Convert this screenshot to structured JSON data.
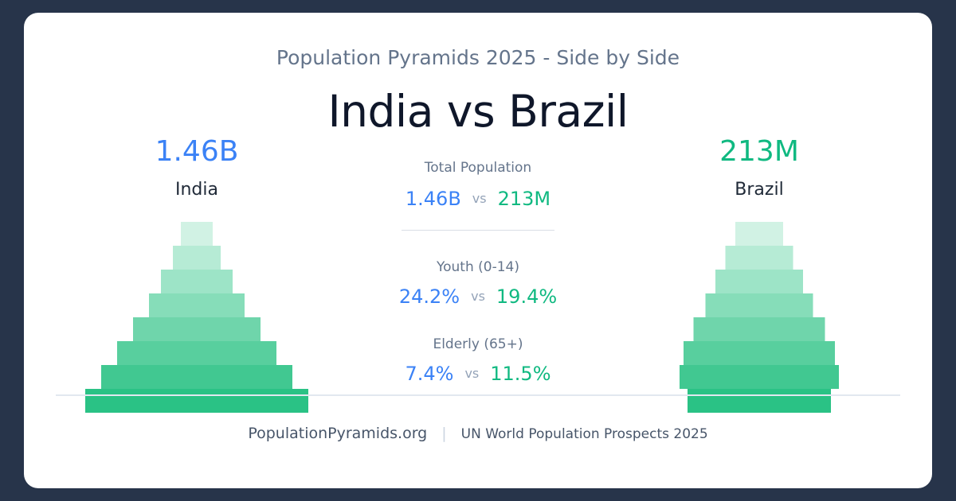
{
  "header": {
    "subtitle": "Population Pyramids 2025 - Side by Side",
    "title": "India vs Brazil"
  },
  "left": {
    "country": "India",
    "total": "1.46B",
    "color": "#3b82f6"
  },
  "right": {
    "country": "Brazil",
    "total": "213M",
    "color": "#10b981"
  },
  "stats": {
    "vs_label": "vs",
    "total": {
      "label": "Total Population",
      "left": "1.46B",
      "right": "213M"
    },
    "youth": {
      "label": "Youth (0-14)",
      "left": "24.2%",
      "right": "19.4%"
    },
    "elderly": {
      "label": "Elderly (65+)",
      "left": "7.4%",
      "right": "11.5%"
    }
  },
  "footer": {
    "site": "PopulationPyramids.org",
    "separator": "|",
    "source": "UN World Population Prospects 2025"
  },
  "chart_data": [
    {
      "type": "bar",
      "name": "India",
      "orientation": "horizontal-symmetric",
      "bands_top_to_bottom": [
        40,
        60,
        90,
        120,
        160,
        200,
        240,
        280,
        280
      ],
      "colors_top_to_bottom": [
        "#d1f2e4",
        "#b6ebd5",
        "#9de4c7",
        "#86ddb9",
        "#6fd5ab",
        "#58cf9e",
        "#41c891",
        "#2ac285",
        "#2ac285"
      ]
    },
    {
      "type": "bar",
      "name": "Brazil",
      "orientation": "horizontal-symmetric",
      "bands_top_to_bottom": [
        60,
        85,
        110,
        135,
        165,
        190,
        200,
        180,
        180
      ],
      "colors_top_to_bottom": [
        "#d1f2e4",
        "#b6ebd5",
        "#9de4c7",
        "#86ddb9",
        "#6fd5ab",
        "#58cf9e",
        "#41c891",
        "#2ac285",
        "#2ac285"
      ]
    }
  ]
}
